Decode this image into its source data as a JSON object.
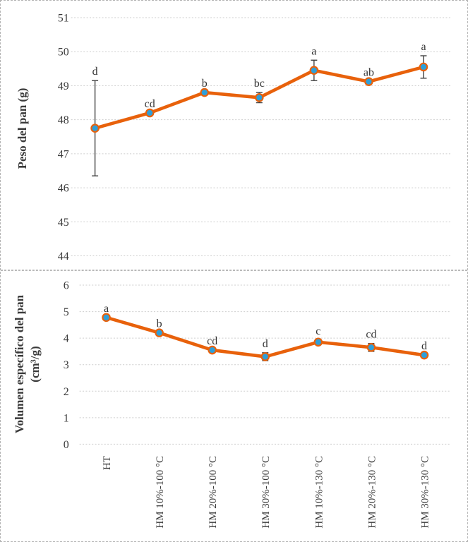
{
  "figure": {
    "background": "#ffffff",
    "border_color": "#b3b3b3",
    "text_color": "#3a3a3a"
  },
  "chart_data": [
    {
      "type": "line",
      "title": "",
      "xlabel": "",
      "ylabel": "Peso del pan (g)",
      "ylabel_lines": [
        "Peso del pan (g)"
      ],
      "categories": [
        "HT",
        "HM 10%-100 °C",
        "HM 20%-100 °C",
        "HM 30%-100 °C",
        "HM 10%-130 °C",
        "HM 20%-130 °C",
        "HM 30%-130 °C"
      ],
      "series": [
        {
          "name": "Peso del pan",
          "values": [
            47.75,
            48.2,
            48.8,
            48.65,
            49.45,
            49.12,
            49.55
          ],
          "errors": [
            1.4,
            0,
            0,
            0.15,
            0.3,
            0,
            0.33
          ],
          "point_labels": [
            "d",
            "cd",
            "b",
            "bc",
            "a",
            "ab",
            "a"
          ]
        }
      ],
      "ylim": [
        44,
        51
      ],
      "yticks": [
        44,
        45,
        46,
        47,
        48,
        49,
        50,
        51
      ],
      "grid": "horizontal-dotted",
      "legend": "none",
      "x_tick_labels_visible": false,
      "line_color": "#e8610b",
      "marker_color": "#2e9fd9",
      "error_bar_color": "#404040"
    },
    {
      "type": "line",
      "title": "",
      "xlabel": "",
      "ylabel": "Volumen específico del pan (cm³/g)",
      "ylabel_lines": [
        "Volumen específico del pan",
        "(cm³/g)"
      ],
      "categories": [
        "HT",
        "HM 10%-100 °C",
        "HM 20%-100 °C",
        "HM 30%-100 °C",
        "HM 10%-130 °C",
        "HM 20%-130 °C",
        "HM 30%-130 °C"
      ],
      "series": [
        {
          "name": "Volumen específico del pan",
          "values": [
            4.78,
            4.2,
            3.55,
            3.3,
            3.85,
            3.65,
            3.36
          ],
          "errors": [
            0,
            0,
            0,
            0.15,
            0.08,
            0.15,
            0
          ],
          "point_labels": [
            "a",
            "b",
            "cd",
            "d",
            "c",
            "cd",
            "d"
          ]
        }
      ],
      "ylim": [
        0,
        6
      ],
      "yticks": [
        0,
        1,
        2,
        3,
        4,
        5,
        6
      ],
      "grid": "horizontal-dotted",
      "legend": "none",
      "x_tick_labels_visible": true,
      "line_color": "#e8610b",
      "marker_color": "#2e9fd9",
      "error_bar_color": "#404040"
    }
  ]
}
